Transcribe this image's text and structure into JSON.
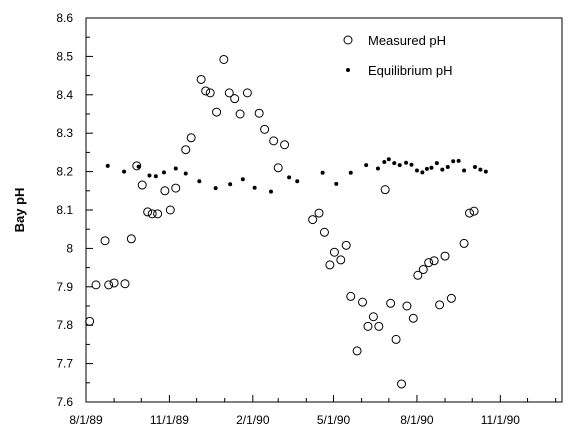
{
  "chart_data": {
    "type": "scatter",
    "title": "",
    "xlabel": "",
    "ylabel": "Bay pH",
    "xlim": [
      "1989-08-01",
      "1991-01-08"
    ],
    "ylim": [
      7.6,
      8.6
    ],
    "x_ticks": [
      "1989-08-01",
      "1989-11-01",
      "1990-02-01",
      "1990-05-01",
      "1990-08-01",
      "1990-11-01"
    ],
    "x_tick_labels": [
      "8/1/89",
      "11/1/89",
      "2/1/90",
      "5/1/90",
      "8/1/90",
      "11/1/90"
    ],
    "y_ticks": [
      7.6,
      7.7,
      7.8,
      7.9,
      8,
      8.1,
      8.2,
      8.3,
      8.4,
      8.5,
      8.6
    ],
    "y_tick_labels": [
      "7.6",
      "7.7",
      "7.8",
      "7.9",
      "8",
      "8.1",
      "8.2",
      "8.3",
      "8.4",
      "8.5",
      "8.6"
    ],
    "grid": false,
    "legend_position": "top-right",
    "series": [
      {
        "name": "Measured pH",
        "marker": "open-circle",
        "color": "#000000",
        "points": [
          [
            "1989-08-05",
            7.81
          ],
          [
            "1989-08-12",
            7.905
          ],
          [
            "1989-08-22",
            8.02
          ],
          [
            "1989-08-26",
            7.905
          ],
          [
            "1989-09-01",
            7.91
          ],
          [
            "1989-09-13",
            7.908
          ],
          [
            "1989-09-20",
            8.025
          ],
          [
            "1989-09-26",
            8.215
          ],
          [
            "1989-10-02",
            8.165
          ],
          [
            "1989-10-08",
            8.095
          ],
          [
            "1989-10-13",
            8.09
          ],
          [
            "1989-10-19",
            8.09
          ],
          [
            "1989-10-27",
            8.15
          ],
          [
            "1989-11-02",
            8.1
          ],
          [
            "1989-11-08",
            8.157
          ],
          [
            "1989-11-19",
            8.257
          ],
          [
            "1989-11-25",
            8.288
          ],
          [
            "1989-12-06",
            8.44
          ],
          [
            "1989-12-11",
            8.41
          ],
          [
            "1989-12-16",
            8.405
          ],
          [
            "1989-12-23",
            8.355
          ],
          [
            "1989-12-31",
            8.492
          ],
          [
            "1990-01-06",
            8.405
          ],
          [
            "1990-01-12",
            8.39
          ],
          [
            "1990-01-18",
            8.35
          ],
          [
            "1990-01-26",
            8.405
          ],
          [
            "1990-02-08",
            8.352
          ],
          [
            "1990-02-14",
            8.31
          ],
          [
            "1990-02-24",
            8.28
          ],
          [
            "1990-03-01",
            8.21
          ],
          [
            "1990-03-08",
            8.27
          ],
          [
            "1990-04-08",
            8.075
          ],
          [
            "1990-04-15",
            8.092
          ],
          [
            "1990-04-21",
            8.042
          ],
          [
            "1990-04-27",
            7.957
          ],
          [
            "1990-05-02",
            7.99
          ],
          [
            "1990-05-09",
            7.97
          ],
          [
            "1990-05-15",
            8.008
          ],
          [
            "1990-05-20",
            7.875
          ],
          [
            "1990-05-27",
            7.733
          ],
          [
            "1990-06-02",
            7.86
          ],
          [
            "1990-06-08",
            7.797
          ],
          [
            "1990-06-14",
            7.822
          ],
          [
            "1990-06-20",
            7.797
          ],
          [
            "1990-06-27",
            8.153
          ],
          [
            "1990-07-03",
            7.857
          ],
          [
            "1990-07-09",
            7.763
          ],
          [
            "1990-07-15",
            7.647
          ],
          [
            "1990-07-21",
            7.85
          ],
          [
            "1990-07-28",
            7.818
          ],
          [
            "1990-08-02",
            7.93
          ],
          [
            "1990-08-08",
            7.945
          ],
          [
            "1990-08-14",
            7.963
          ],
          [
            "1990-08-20",
            7.968
          ],
          [
            "1990-08-26",
            7.853
          ],
          [
            "1990-09-01",
            7.98
          ],
          [
            "1990-09-08",
            7.87
          ],
          [
            "1990-09-22",
            8.013
          ],
          [
            "1990-09-28",
            8.092
          ],
          [
            "1990-10-03",
            8.097
          ]
        ]
      },
      {
        "name": "Equilibrium pH",
        "marker": "filled-dot",
        "color": "#000000",
        "points": [
          [
            "1989-08-25",
            8.215
          ],
          [
            "1989-09-12",
            8.2
          ],
          [
            "1989-09-28",
            8.213
          ],
          [
            "1989-10-10",
            8.19
          ],
          [
            "1989-10-17",
            8.188
          ],
          [
            "1989-10-26",
            8.198
          ],
          [
            "1989-11-08",
            8.208
          ],
          [
            "1989-11-19",
            8.195
          ],
          [
            "1989-12-04",
            8.175
          ],
          [
            "1989-12-22",
            8.157
          ],
          [
            "1990-01-07",
            8.167
          ],
          [
            "1990-01-21",
            8.18
          ],
          [
            "1990-02-03",
            8.158
          ],
          [
            "1990-02-21",
            8.148
          ],
          [
            "1990-03-13",
            8.185
          ],
          [
            "1990-03-22",
            8.175
          ],
          [
            "1990-04-19",
            8.197
          ],
          [
            "1990-05-04",
            8.168
          ],
          [
            "1990-05-20",
            8.197
          ],
          [
            "1990-06-06",
            8.217
          ],
          [
            "1990-06-19",
            8.208
          ],
          [
            "1990-06-26",
            8.225
          ],
          [
            "1990-07-01",
            8.232
          ],
          [
            "1990-07-07",
            8.222
          ],
          [
            "1990-07-13",
            8.217
          ],
          [
            "1990-07-20",
            8.223
          ],
          [
            "1990-07-26",
            8.218
          ],
          [
            "1990-08-01",
            8.203
          ],
          [
            "1990-08-07",
            8.198
          ],
          [
            "1990-08-12",
            8.207
          ],
          [
            "1990-08-17",
            8.21
          ],
          [
            "1990-08-23",
            8.222
          ],
          [
            "1990-08-29",
            8.205
          ],
          [
            "1990-09-04",
            8.212
          ],
          [
            "1990-09-10",
            8.227
          ],
          [
            "1990-09-16",
            8.228
          ],
          [
            "1990-09-22",
            8.203
          ],
          [
            "1990-10-04",
            8.212
          ],
          [
            "1990-10-10",
            8.205
          ],
          [
            "1990-10-16",
            8.2
          ]
        ]
      }
    ]
  }
}
